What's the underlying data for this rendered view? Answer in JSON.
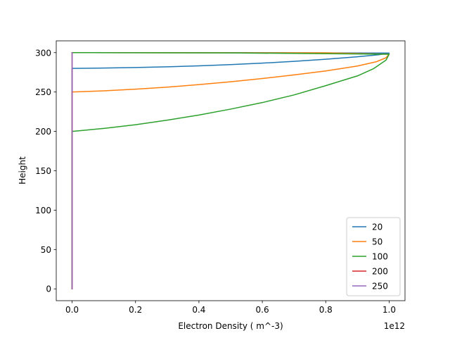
{
  "chart_data": {
    "type": "line",
    "title": "",
    "xlabel": "Electron Density ( m^-3)",
    "ylabel": "Height",
    "x_offset_label": "1e12",
    "x_scale": 1000000000000.0,
    "xlim": [
      -0.05,
      1.05
    ],
    "ylim": [
      -15,
      315
    ],
    "xticks": [
      0.0,
      0.2,
      0.4,
      0.6,
      0.8,
      1.0
    ],
    "xtick_labels": [
      "0.0",
      "0.2",
      "0.4",
      "0.6",
      "0.8",
      "1.0"
    ],
    "yticks": [
      0,
      50,
      100,
      150,
      200,
      250,
      300
    ],
    "ytick_labels": [
      "0",
      "50",
      "100",
      "150",
      "200",
      "250",
      "300"
    ],
    "grid": false,
    "legend_position": "lower-right",
    "series": [
      {
        "name": "20",
        "color": "#1f77b4",
        "points": [
          [
            0.0,
            0
          ],
          [
            0.0,
            279
          ],
          [
            0.0,
            280
          ],
          [
            0.1,
            280.5
          ],
          [
            0.2,
            281.1
          ],
          [
            0.3,
            282.0
          ],
          [
            0.4,
            283.2
          ],
          [
            0.5,
            284.8
          ],
          [
            0.6,
            286.7
          ],
          [
            0.7,
            289.0
          ],
          [
            0.8,
            291.6
          ],
          [
            0.9,
            294.8
          ],
          [
            0.97,
            297.5
          ],
          [
            1.0,
            299.5
          ],
          [
            0.6,
            299.9
          ],
          [
            0.0,
            300
          ]
        ]
      },
      {
        "name": "50",
        "color": "#ff7f0e",
        "points": [
          [
            0.0,
            0
          ],
          [
            0.0,
            249
          ],
          [
            0.0,
            250
          ],
          [
            0.1,
            251.5
          ],
          [
            0.2,
            253.6
          ],
          [
            0.3,
            256.2
          ],
          [
            0.4,
            259.4
          ],
          [
            0.5,
            263.0
          ],
          [
            0.6,
            267.2
          ],
          [
            0.7,
            271.7
          ],
          [
            0.8,
            276.8
          ],
          [
            0.9,
            283.0
          ],
          [
            0.96,
            288.5
          ],
          [
            0.99,
            293.5
          ],
          [
            1.0,
            298.0
          ],
          [
            0.8,
            299.8
          ],
          [
            0.0,
            300
          ]
        ]
      },
      {
        "name": "100",
        "color": "#2ca02c",
        "points": [
          [
            0.0,
            0
          ],
          [
            0.0,
            199
          ],
          [
            0.0,
            200
          ],
          [
            0.1,
            203.8
          ],
          [
            0.2,
            208.5
          ],
          [
            0.3,
            214.3
          ],
          [
            0.4,
            220.8
          ],
          [
            0.5,
            228.3
          ],
          [
            0.6,
            236.6
          ],
          [
            0.7,
            246.3
          ],
          [
            0.8,
            258.1
          ],
          [
            0.9,
            270.5
          ],
          [
            0.95,
            279.5
          ],
          [
            0.99,
            290.5
          ],
          [
            1.0,
            298.0
          ],
          [
            0.5,
            299.7
          ],
          [
            0.0,
            300
          ]
        ]
      },
      {
        "name": "200",
        "color": "#d62728",
        "points": [
          [
            0.0,
            0
          ],
          [
            0.0,
            300
          ]
        ]
      },
      {
        "name": "250",
        "color": "#9467bd",
        "points": [
          [
            0.0,
            0
          ],
          [
            0.0,
            300
          ]
        ]
      }
    ]
  }
}
